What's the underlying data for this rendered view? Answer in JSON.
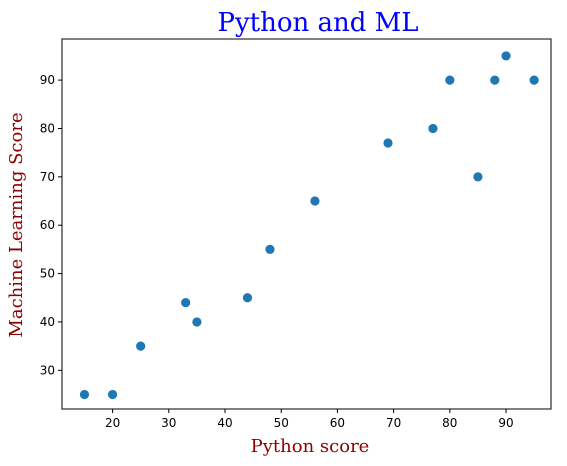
{
  "chart_data": {
    "type": "scatter",
    "title": "Python and ML",
    "xlabel": "Python score",
    "ylabel": "Machine Learning Score",
    "xlim": [
      11,
      98
    ],
    "ylim": [
      22,
      98.5
    ],
    "xticks": [
      20,
      30,
      40,
      50,
      60,
      70,
      80,
      90
    ],
    "yticks": [
      30,
      40,
      50,
      60,
      70,
      80,
      90
    ],
    "grid": false,
    "points": {
      "x": [
        15,
        20,
        25,
        33,
        35,
        44,
        48,
        56,
        69,
        77,
        80,
        85,
        88,
        90,
        95
      ],
      "y": [
        25,
        25,
        35,
        44,
        40,
        45,
        55,
        65,
        77,
        80,
        90,
        70,
        90,
        95,
        90
      ]
    },
    "colors": {
      "marker": "#1f77b4",
      "title": "#0000ff",
      "axis_label": "#8b0000"
    }
  }
}
